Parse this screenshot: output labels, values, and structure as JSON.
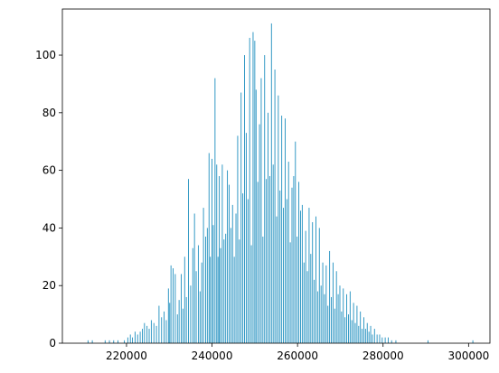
{
  "chart_data": {
    "type": "bar",
    "title": "",
    "xlabel": "",
    "ylabel": "",
    "xlim": [
      205000,
      305000
    ],
    "ylim": [
      0,
      116
    ],
    "x_ticks": [
      220000,
      240000,
      260000,
      280000,
      300000
    ],
    "x_tick_labels": [
      "220000",
      "240000",
      "260000",
      "280000",
      "300000"
    ],
    "y_ticks": [
      0,
      20,
      40,
      60,
      80,
      100
    ],
    "y_tick_labels": [
      "0",
      "20",
      "40",
      "60",
      "80",
      "100"
    ],
    "grid": false,
    "legend": "none",
    "bar_color": "#1f8fbf",
    "bin_width": 100,
    "series": [
      {
        "x": [
          211000,
          212000,
          215000,
          216000,
          217000,
          218000,
          219500,
          220300,
          220900,
          221400,
          222000,
          222600,
          223200,
          223700,
          224200,
          224800,
          225300,
          225800,
          226400,
          227000,
          227600,
          228200,
          228800,
          229300,
          229800,
          230100,
          230400,
          230900,
          231400,
          231900,
          232300,
          232800,
          233200,
          233600,
          234000,
          234500,
          235000,
          235500,
          235900,
          236300,
          236800,
          237200,
          237600,
          238000,
          238500,
          238900,
          239300,
          239600,
          240000,
          240300,
          240700,
          241100,
          241400,
          241700,
          242000,
          242400,
          242800,
          243200,
          243600,
          244000,
          244400,
          244800,
          245200,
          245600,
          246000,
          246400,
          246800,
          247200,
          247600,
          248000,
          248400,
          248800,
          249200,
          249600,
          250000,
          250300,
          250700,
          251100,
          251500,
          251900,
          252300,
          252700,
          253100,
          253500,
          253900,
          254300,
          254700,
          255100,
          255500,
          255900,
          256300,
          256700,
          257100,
          257500,
          257900,
          258300,
          258700,
          259100,
          259500,
          259900,
          260300,
          260700,
          261100,
          261500,
          261900,
          262300,
          262700,
          263100,
          263500,
          263900,
          264300,
          264700,
          265100,
          265500,
          265900,
          266300,
          266700,
          267100,
          267500,
          267900,
          268300,
          268700,
          269100,
          269500,
          269900,
          270300,
          270700,
          271100,
          271500,
          271900,
          272300,
          272700,
          273100,
          273500,
          273900,
          274300,
          274700,
          275100,
          275500,
          275900,
          276300,
          276700,
          277100,
          277500,
          278000,
          278600,
          279200,
          279800,
          280500,
          281200,
          282000,
          283000,
          290500,
          301000
        ],
        "y": [
          1,
          1,
          1,
          1,
          1,
          1,
          1,
          2,
          3,
          2,
          4,
          3,
          4,
          5,
          7,
          6,
          5,
          8,
          7,
          6,
          13,
          9,
          11,
          8,
          19,
          14,
          27,
          26,
          24,
          10,
          15,
          24,
          12,
          30,
          16,
          57,
          20,
          33,
          45,
          25,
          34,
          18,
          28,
          47,
          37,
          40,
          66,
          30,
          64,
          41,
          92,
          62,
          30,
          58,
          33,
          62,
          36,
          38,
          60,
          55,
          40,
          48,
          30,
          45,
          72,
          36,
          87,
          52,
          100,
          73,
          50,
          106,
          34,
          108,
          105,
          88,
          56,
          76,
          92,
          37,
          100,
          57,
          80,
          58,
          111,
          62,
          95,
          44,
          86,
          53,
          79,
          47,
          78,
          50,
          63,
          35,
          54,
          58,
          70,
          37,
          56,
          46,
          48,
          28,
          39,
          25,
          47,
          31,
          42,
          22,
          44,
          18,
          40,
          20,
          28,
          17,
          27,
          13,
          32,
          16,
          28,
          12,
          25,
          17,
          20,
          11,
          19,
          9,
          17,
          10,
          18,
          8,
          14,
          7,
          13,
          6,
          11,
          5,
          9,
          5,
          7,
          4,
          6,
          3,
          5,
          3,
          3,
          2,
          2,
          2,
          1,
          1,
          1,
          1
        ]
      }
    ]
  }
}
